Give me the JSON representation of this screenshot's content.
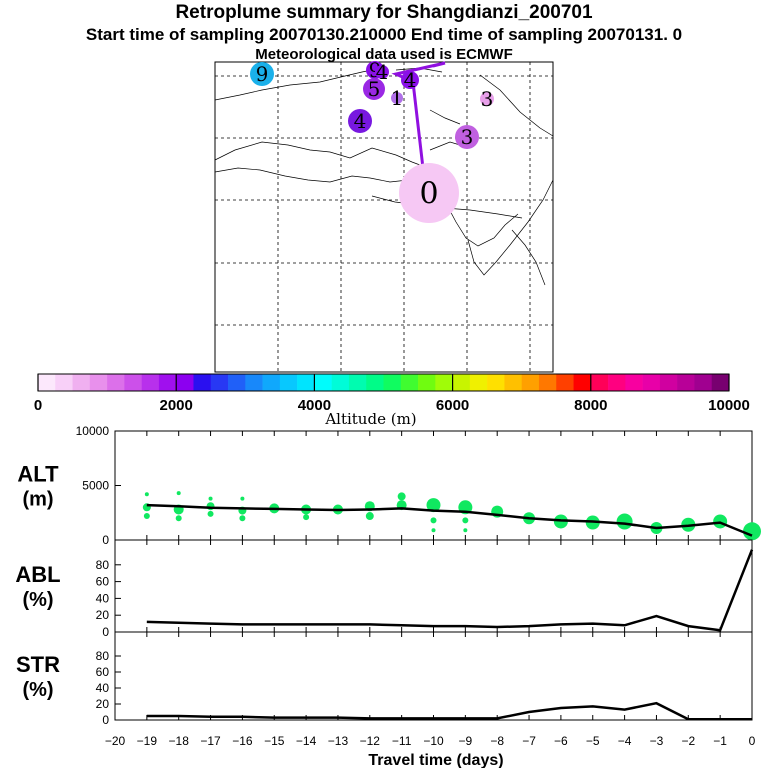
{
  "header": {
    "title": "Retroplume summary for Shangdianzi_200701",
    "line2": "Start time of sampling 20070130.210000      End time of sampling 20070131.    0",
    "line3": "Meteorological data used is ECMWF"
  },
  "map": {
    "markers": [
      {
        "label": "9",
        "color": "#1ab0ea"
      },
      {
        "label": "9",
        "color": "#8a10e8"
      },
      {
        "label": "4",
        "color": "#8a10e8"
      },
      {
        "label": "5",
        "color": "#9a28e4"
      },
      {
        "label": "1",
        "color": "#b070e8"
      },
      {
        "label": "4",
        "color": "#8a10e8"
      },
      {
        "label": "3",
        "color": "#e8a0ea"
      },
      {
        "label": "4",
        "color": "#7818e0"
      },
      {
        "label": "3",
        "color": "#c060e0"
      },
      {
        "label": "0",
        "color": "#f6c8f4"
      }
    ],
    "track_color": "#9010e0"
  },
  "colorbar": {
    "ticks": [
      "0",
      "2000",
      "4000",
      "6000",
      "8000",
      "10000"
    ],
    "label": "Altitude  (m)",
    "colors": [
      "#fce8fc",
      "#f8d0f8",
      "#f0b0f0",
      "#e890ec",
      "#dc70ea",
      "#cc50ea",
      "#b830ec",
      "#a010ee",
      "#8c00f0",
      "#2a10f0",
      "#2838f4",
      "#2060f8",
      "#1888fa",
      "#10a8fc",
      "#08c8fe",
      "#00e4fe",
      "#00fcfc",
      "#00fcd8",
      "#00fcb0",
      "#00fc88",
      "#10fc60",
      "#40fc30",
      "#70fc10",
      "#a0fc08",
      "#c8f400",
      "#f0f000",
      "#ffe000",
      "#ffc000",
      "#ffa000",
      "#ff7800",
      "#ff4000",
      "#ff0000",
      "#ff0058",
      "#ff0080",
      "#f800a0",
      "#e800a8",
      "#d000a0",
      "#b80098",
      "#a00090",
      "#780070"
    ]
  },
  "chart_data": [
    {
      "type": "line",
      "panel": "ALT",
      "ylabel": "ALT\n(m)",
      "ylabel_lines": [
        "ALT",
        "(m)"
      ],
      "ylim": [
        0,
        10000
      ],
      "yticks": [
        "0",
        "5000",
        "10000"
      ],
      "x": [
        -19,
        -18,
        -17,
        -16,
        -15,
        -14,
        -13,
        -12,
        -11,
        -10,
        -9,
        -8,
        -7,
        -6,
        -5,
        -4,
        -3,
        -2,
        -1,
        0
      ],
      "values": [
        3200,
        3100,
        2950,
        2900,
        2850,
        2800,
        2750,
        2800,
        2900,
        2700,
        2600,
        2300,
        2000,
        1800,
        1700,
        1500,
        1100,
        1300,
        1600,
        400
      ],
      "scatter_color": "#10e860",
      "scatter": [
        {
          "x": -19,
          "y": 3000,
          "r": 4
        },
        {
          "x": -19,
          "y": 4200,
          "r": 2
        },
        {
          "x": -19,
          "y": 2200,
          "r": 3
        },
        {
          "x": -18,
          "y": 2800,
          "r": 5
        },
        {
          "x": -18,
          "y": 4300,
          "r": 2
        },
        {
          "x": -18,
          "y": 2000,
          "r": 3
        },
        {
          "x": -17,
          "y": 3100,
          "r": 4
        },
        {
          "x": -17,
          "y": 3800,
          "r": 2
        },
        {
          "x": -17,
          "y": 2400,
          "r": 3
        },
        {
          "x": -16,
          "y": 2700,
          "r": 4
        },
        {
          "x": -16,
          "y": 3800,
          "r": 2
        },
        {
          "x": -16,
          "y": 2000,
          "r": 3
        },
        {
          "x": -15,
          "y": 2900,
          "r": 5
        },
        {
          "x": -14,
          "y": 2800,
          "r": 5
        },
        {
          "x": -14,
          "y": 2100,
          "r": 3
        },
        {
          "x": -13,
          "y": 2800,
          "r": 5
        },
        {
          "x": -12,
          "y": 3100,
          "r": 5
        },
        {
          "x": -12,
          "y": 2200,
          "r": 4
        },
        {
          "x": -11,
          "y": 3200,
          "r": 5
        },
        {
          "x": -11,
          "y": 4000,
          "r": 4
        },
        {
          "x": -10,
          "y": 3200,
          "r": 7
        },
        {
          "x": -10,
          "y": 1800,
          "r": 3
        },
        {
          "x": -10,
          "y": 900,
          "r": 2
        },
        {
          "x": -9,
          "y": 3000,
          "r": 7
        },
        {
          "x": -9,
          "y": 1800,
          "r": 3
        },
        {
          "x": -9,
          "y": 900,
          "r": 2
        },
        {
          "x": -8,
          "y": 2600,
          "r": 6
        },
        {
          "x": -7,
          "y": 2000,
          "r": 6
        },
        {
          "x": -6,
          "y": 1700,
          "r": 7
        },
        {
          "x": -5,
          "y": 1600,
          "r": 7
        },
        {
          "x": -4,
          "y": 1700,
          "r": 8
        },
        {
          "x": -3,
          "y": 1100,
          "r": 6
        },
        {
          "x": -2,
          "y": 1400,
          "r": 7
        },
        {
          "x": -1,
          "y": 1700,
          "r": 7
        },
        {
          "x": 0,
          "y": 800,
          "r": 9
        }
      ]
    },
    {
      "type": "line",
      "panel": "ABL",
      "ylabel_lines": [
        "ABL",
        "(%)"
      ],
      "ylim": [
        0,
        100
      ],
      "yticks": [
        "0",
        "20",
        "40",
        "60",
        "80"
      ],
      "x": [
        -19,
        -18,
        -17,
        -16,
        -15,
        -14,
        -13,
        -12,
        -11,
        -10,
        -9,
        -8,
        -7,
        -6,
        -5,
        -4,
        -3,
        -2,
        -1,
        0
      ],
      "values": [
        12,
        11,
        10,
        9,
        9,
        9,
        9,
        9,
        8,
        7,
        7,
        6,
        7,
        9,
        10,
        8,
        19,
        7,
        2,
        98
      ]
    },
    {
      "type": "line",
      "panel": "STR",
      "ylabel_lines": [
        "STR",
        "(%)"
      ],
      "ylim": [
        0,
        100
      ],
      "yticks": [
        "0",
        "20",
        "40",
        "60",
        "80"
      ],
      "x": [
        -19,
        -18,
        -17,
        -16,
        -15,
        -14,
        -13,
        -12,
        -11,
        -10,
        -9,
        -8,
        -7,
        -6,
        -5,
        -4,
        -3,
        -2,
        -1,
        0
      ],
      "values": [
        5,
        5,
        4,
        4,
        3,
        3,
        3,
        2,
        2,
        2,
        2,
        2,
        10,
        15,
        17,
        13,
        21,
        1,
        1,
        1
      ]
    }
  ],
  "xaxis": {
    "label": "Travel time (days)",
    "ticks": [
      "−20",
      "−19",
      "−18",
      "−17",
      "−16",
      "−15",
      "−14",
      "−13",
      "−12",
      "−11",
      "−10",
      "−9",
      "−8",
      "−7",
      "−6",
      "−5",
      "−4",
      "−3",
      "−2",
      "−1",
      "0"
    ]
  }
}
